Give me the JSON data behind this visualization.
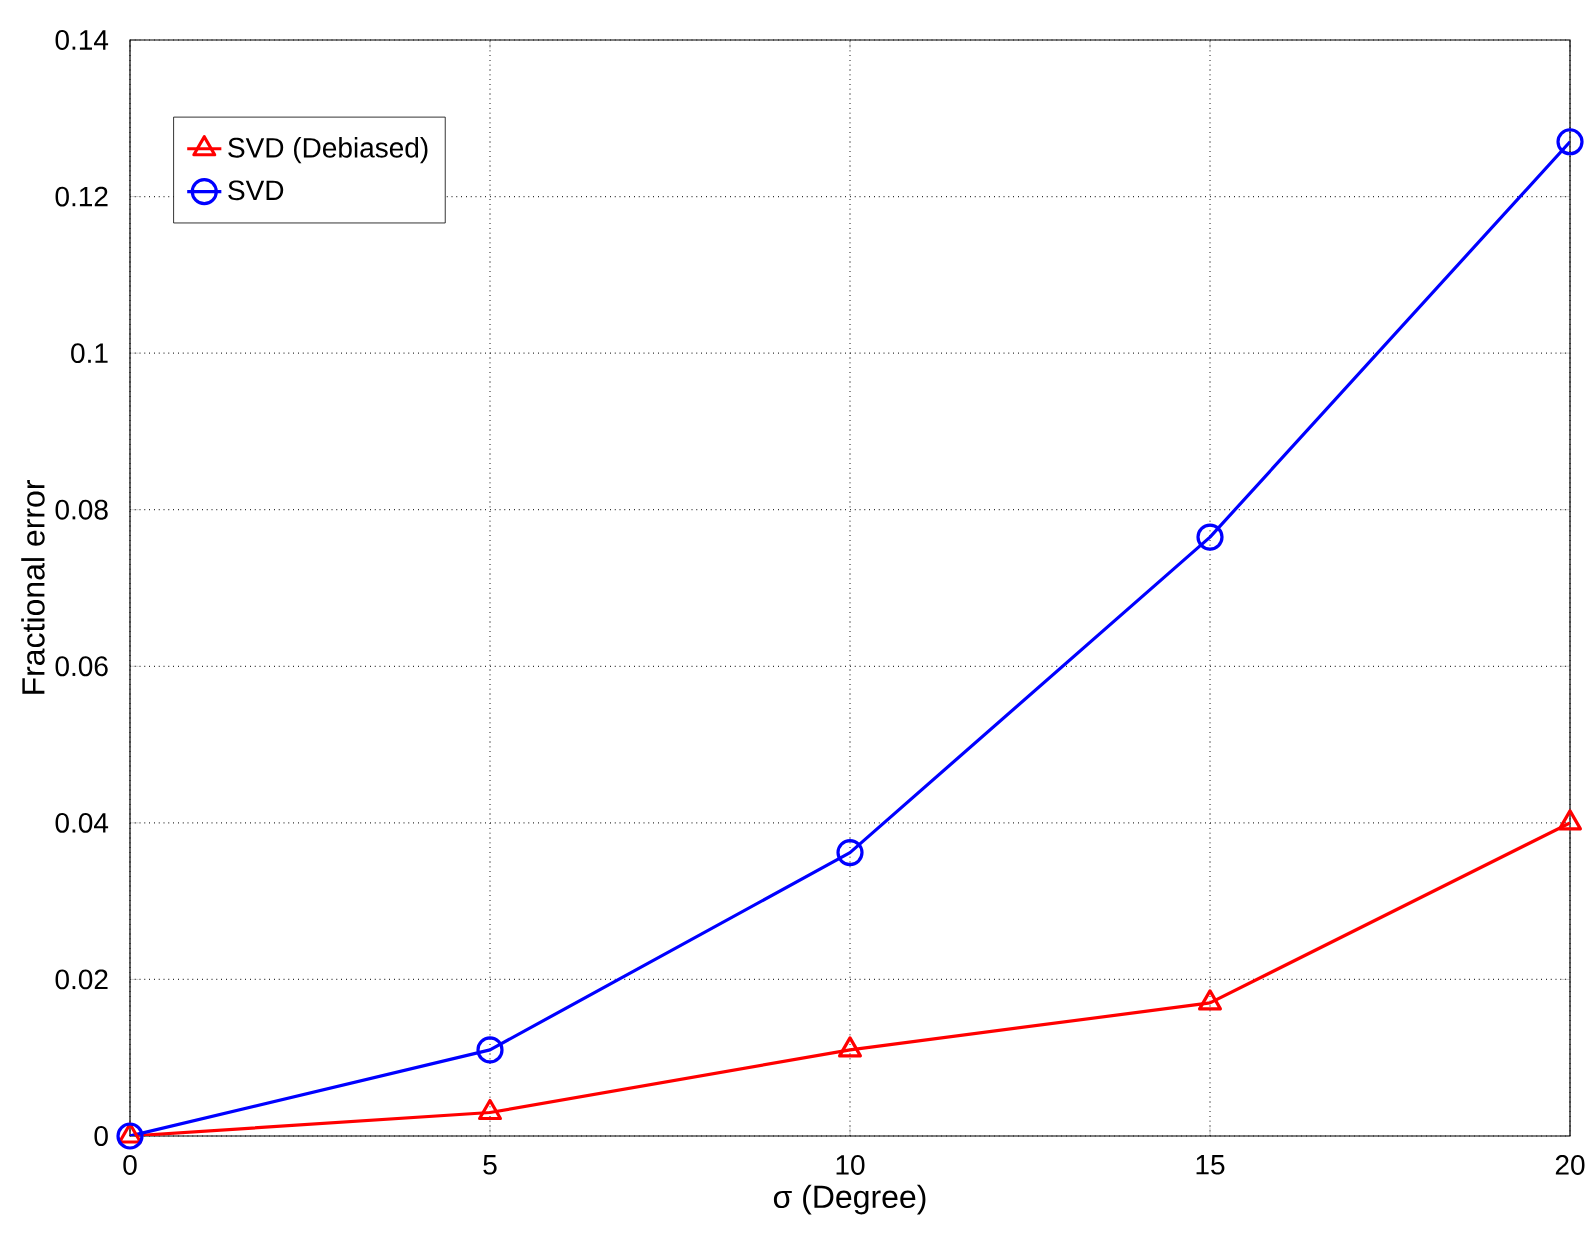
{
  "chart_data": {
    "type": "line",
    "xlabel": "σ (Degree)",
    "ylabel": "Fractional error",
    "x": [
      0,
      5,
      10,
      15,
      20
    ],
    "series": [
      {
        "name": "SVD (Debiased)",
        "color": "#ff0000",
        "marker": "triangle",
        "values": [
          0,
          0.003,
          0.011,
          0.017,
          0.04
        ]
      },
      {
        "name": "SVD",
        "color": "#0000ff",
        "marker": "circle",
        "values": [
          0,
          0.011,
          0.0362,
          0.0765,
          0.127
        ]
      }
    ],
    "xlim": [
      0,
      20
    ],
    "ylim": [
      0,
      0.14
    ],
    "xticks": [
      0,
      5,
      10,
      15,
      20
    ],
    "yticks": [
      0,
      0.02,
      0.04,
      0.06,
      0.08,
      0.1,
      0.12,
      0.14
    ],
    "grid": true,
    "legend": "top left",
    "line_style": "solid"
  }
}
